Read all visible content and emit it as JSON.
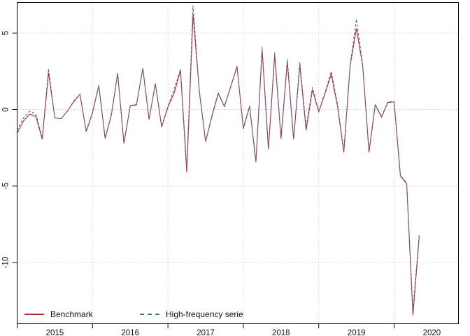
{
  "chart_data": {
    "type": "line",
    "title": "",
    "xlabel": "",
    "ylabel": "",
    "x_start": "2015-01",
    "x_end": "2020-05",
    "frequency": "monthly",
    "x_tick_labels": [
      "2015",
      "2016",
      "2017",
      "2018",
      "2019",
      "2020"
    ],
    "y_tick_values": [
      5,
      0,
      -5,
      -10
    ],
    "y_tick_labels": [
      "5",
      "0",
      "-5",
      "-10"
    ],
    "ylim": [
      -14.0,
      7.0
    ],
    "grid": "dotted",
    "legend_position": "bottom-inside",
    "series": [
      {
        "name": "Benchmark",
        "color": "#d42020",
        "style": "solid",
        "values": [
          -1.55,
          -0.75,
          -0.3,
          -0.45,
          -1.95,
          2.4,
          -0.55,
          -0.6,
          -0.1,
          0.5,
          1.0,
          -1.45,
          -0.2,
          1.55,
          -1.9,
          -0.35,
          2.35,
          -2.2,
          0.25,
          0.3,
          2.7,
          -0.65,
          1.7,
          -1.15,
          0.15,
          1.1,
          2.55,
          -4.1,
          6.2,
          1.2,
          -2.1,
          -0.45,
          1.05,
          0.2,
          1.5,
          2.8,
          -1.25,
          0.2,
          -3.45,
          3.9,
          -2.6,
          3.55,
          -1.9,
          3.1,
          -1.95,
          2.9,
          -1.35,
          1.3,
          -0.15,
          1.05,
          2.3,
          0.2,
          -2.8,
          2.85,
          5.3,
          2.85,
          -2.8,
          0.3,
          -0.5,
          0.45,
          0.5,
          -4.35,
          -4.85,
          -13.45,
          -8.3
        ]
      },
      {
        "name": "High-frequency serie",
        "color": "#3d6fa8",
        "style": "dashed",
        "values": [
          -1.35,
          -0.55,
          -0.1,
          -0.3,
          -1.85,
          2.65,
          -0.55,
          -0.6,
          -0.1,
          0.55,
          1.0,
          -1.4,
          -0.15,
          1.6,
          -1.85,
          -0.3,
          2.4,
          -2.25,
          0.25,
          0.35,
          2.7,
          -0.65,
          1.7,
          -1.1,
          0.2,
          1.35,
          2.65,
          -3.8,
          6.8,
          1.2,
          -2.1,
          -0.4,
          1.1,
          0.2,
          1.5,
          2.85,
          -1.2,
          0.25,
          -3.4,
          4.1,
          -2.55,
          3.75,
          -1.9,
          3.3,
          -1.9,
          3.1,
          -1.15,
          1.45,
          -0.1,
          1.1,
          2.5,
          0.35,
          -2.7,
          2.9,
          5.9,
          2.9,
          -2.7,
          0.35,
          -0.45,
          0.5,
          0.55,
          -4.3,
          -4.8,
          -13.15,
          -8.15
        ]
      }
    ],
    "colors": {
      "grid": "#c9c9c9",
      "axis": "#000000",
      "benchmark": "#d42020",
      "high_frequency": "#3d6fa8"
    }
  },
  "legend": {
    "benchmark": "Benchmark",
    "high_frequency": "High-frequency serie"
  }
}
